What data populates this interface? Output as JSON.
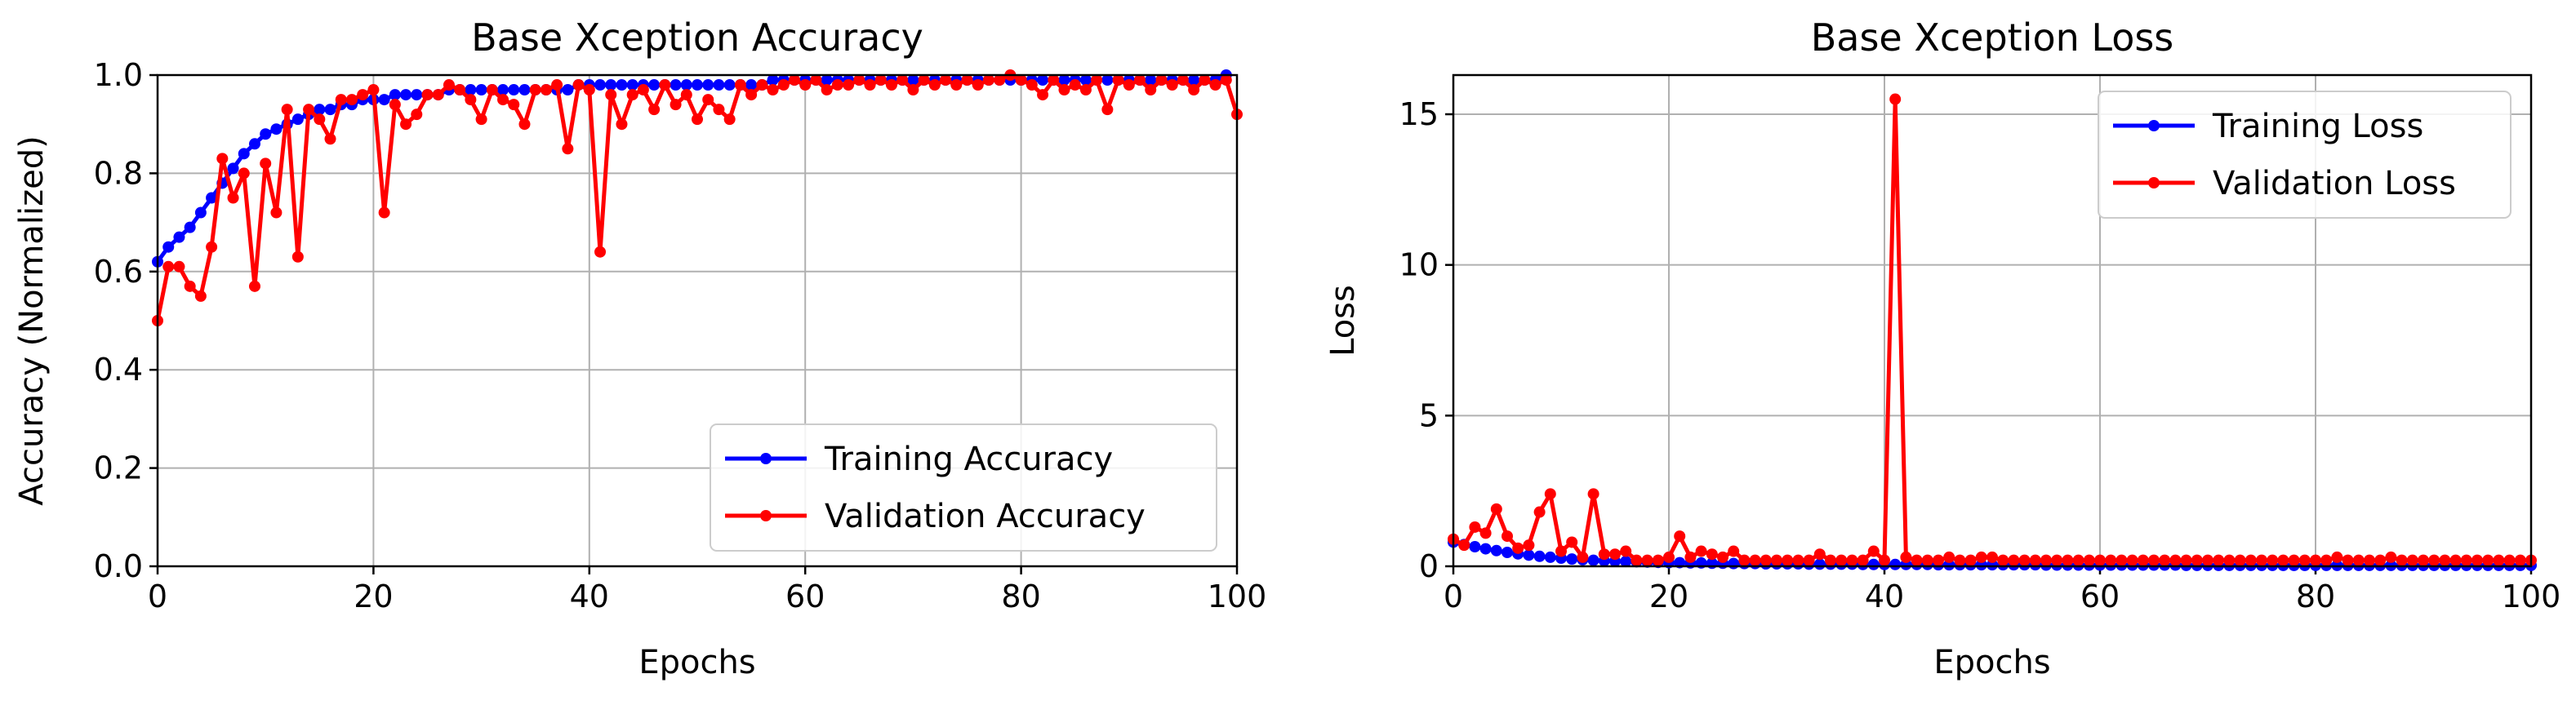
{
  "chart_data": [
    {
      "type": "line",
      "title": "Base Xception Accuracy",
      "xlabel": "Epochs",
      "ylabel": "Accuracy (Normalized)",
      "xlim": [
        0,
        100
      ],
      "ylim": [
        0,
        1.0
      ],
      "xticks": [
        "0",
        "20",
        "40",
        "60",
        "80",
        "100"
      ],
      "yticks": [
        "0.0",
        "0.2",
        "0.4",
        "0.6",
        "0.8",
        "1.0"
      ],
      "grid": true,
      "legend_position": "lower-right",
      "series": [
        {
          "name": "Training Accuracy",
          "color": "#0000ff",
          "values": [
            0.62,
            0.65,
            0.67,
            0.69,
            0.72,
            0.75,
            0.78,
            0.81,
            0.84,
            0.86,
            0.88,
            0.89,
            0.9,
            0.91,
            0.92,
            0.93,
            0.93,
            0.94,
            0.94,
            0.95,
            0.95,
            0.95,
            0.96,
            0.96,
            0.96,
            0.96,
            0.96,
            0.97,
            0.97,
            0.97,
            0.97,
            0.97,
            0.97,
            0.97,
            0.97,
            0.97,
            0.97,
            0.97,
            0.97,
            0.98,
            0.98,
            0.98,
            0.98,
            0.98,
            0.98,
            0.98,
            0.98,
            0.98,
            0.98,
            0.98,
            0.98,
            0.98,
            0.98,
            0.98,
            0.98,
            0.98,
            0.98,
            0.99,
            0.99,
            0.99,
            0.99,
            0.99,
            0.99,
            0.99,
            0.99,
            0.99,
            0.99,
            0.99,
            0.99,
            0.99,
            0.99,
            0.99,
            0.99,
            0.99,
            0.99,
            0.99,
            0.99,
            0.99,
            0.99,
            0.99,
            0.99,
            0.99,
            0.99,
            0.99,
            0.99,
            0.99,
            0.99,
            0.99,
            0.99,
            0.99,
            0.99,
            0.99,
            0.99,
            0.99,
            0.99,
            0.99,
            0.99,
            0.99,
            0.99,
            1.0
          ]
        },
        {
          "name": "Validation Accuracy",
          "color": "#ff0000",
          "values": [
            0.5,
            0.61,
            0.61,
            0.57,
            0.55,
            0.65,
            0.83,
            0.75,
            0.8,
            0.57,
            0.82,
            0.72,
            0.93,
            0.63,
            0.93,
            0.91,
            0.87,
            0.95,
            0.95,
            0.96,
            0.97,
            0.72,
            0.94,
            0.9,
            0.92,
            0.96,
            0.96,
            0.98,
            0.97,
            0.95,
            0.91,
            0.97,
            0.95,
            0.94,
            0.9,
            0.97,
            0.97,
            0.98,
            0.85,
            0.98,
            0.97,
            0.64,
            0.96,
            0.9,
            0.96,
            0.97,
            0.93,
            0.98,
            0.94,
            0.96,
            0.91,
            0.95,
            0.93,
            0.91,
            0.98,
            0.96,
            0.98,
            0.97,
            0.98,
            0.99,
            0.98,
            0.99,
            0.97,
            0.98,
            0.98,
            0.99,
            0.98,
            0.99,
            0.98,
            0.99,
            0.97,
            0.99,
            0.98,
            0.99,
            0.98,
            0.99,
            0.98,
            0.99,
            0.99,
            1.0,
            0.99,
            0.98,
            0.96,
            0.99,
            0.97,
            0.98,
            0.97,
            0.99,
            0.93,
            0.99,
            0.98,
            0.99,
            0.97,
            0.99,
            0.98,
            0.99,
            0.97,
            0.99,
            0.98,
            0.99,
            0.92
          ]
        }
      ]
    },
    {
      "type": "line",
      "title": "Base Xception Loss",
      "xlabel": "Epochs",
      "ylabel": "Loss",
      "xlim": [
        0,
        100
      ],
      "ylim": [
        0,
        16.3
      ],
      "xticks": [
        "0",
        "20",
        "40",
        "60",
        "80",
        "100"
      ],
      "yticks": [
        "0",
        "5",
        "10",
        "15"
      ],
      "grid": true,
      "legend_position": "top-right",
      "series": [
        {
          "name": "Training Loss",
          "color": "#0000ff",
          "values": [
            0.8,
            0.72,
            0.65,
            0.58,
            0.52,
            0.46,
            0.41,
            0.37,
            0.33,
            0.3,
            0.27,
            0.24,
            0.22,
            0.2,
            0.18,
            0.17,
            0.16,
            0.15,
            0.14,
            0.13,
            0.12,
            0.12,
            0.11,
            0.11,
            0.1,
            0.1,
            0.09,
            0.09,
            0.09,
            0.08,
            0.08,
            0.08,
            0.08,
            0.07,
            0.07,
            0.07,
            0.07,
            0.07,
            0.06,
            0.06,
            0.06,
            0.06,
            0.06,
            0.06,
            0.06,
            0.05,
            0.05,
            0.05,
            0.05,
            0.05,
            0.05,
            0.05,
            0.05,
            0.05,
            0.05,
            0.04,
            0.04,
            0.04,
            0.04,
            0.04,
            0.04,
            0.04,
            0.04,
            0.04,
            0.04,
            0.04,
            0.04,
            0.04,
            0.03,
            0.03,
            0.03,
            0.03,
            0.03,
            0.03,
            0.03,
            0.03,
            0.03,
            0.03,
            0.03,
            0.03,
            0.03,
            0.03,
            0.03,
            0.03,
            0.03,
            0.03,
            0.03,
            0.03,
            0.03,
            0.03,
            0.03,
            0.03,
            0.03,
            0.03,
            0.03,
            0.03,
            0.03,
            0.03,
            0.03,
            0.03,
            0.03
          ]
        },
        {
          "name": "Validation Loss",
          "color": "#ff0000",
          "values": [
            0.9,
            0.7,
            1.3,
            1.1,
            1.9,
            1.0,
            0.6,
            0.7,
            1.8,
            2.4,
            0.5,
            0.8,
            0.3,
            2.4,
            0.4,
            0.4,
            0.5,
            0.2,
            0.2,
            0.2,
            0.3,
            1.0,
            0.3,
            0.5,
            0.4,
            0.3,
            0.5,
            0.2,
            0.2,
            0.2,
            0.2,
            0.2,
            0.2,
            0.2,
            0.4,
            0.2,
            0.2,
            0.2,
            0.2,
            0.5,
            0.2,
            15.5,
            0.3,
            0.2,
            0.2,
            0.2,
            0.3,
            0.2,
            0.2,
            0.3,
            0.3,
            0.2,
            0.2,
            0.2,
            0.2,
            0.2,
            0.2,
            0.2,
            0.2,
            0.2,
            0.2,
            0.2,
            0.2,
            0.2,
            0.2,
            0.2,
            0.2,
            0.2,
            0.2,
            0.2,
            0.2,
            0.2,
            0.2,
            0.2,
            0.2,
            0.2,
            0.2,
            0.2,
            0.2,
            0.2,
            0.2,
            0.2,
            0.3,
            0.2,
            0.2,
            0.2,
            0.2,
            0.3,
            0.2,
            0.2,
            0.2,
            0.2,
            0.2,
            0.2,
            0.2,
            0.2,
            0.2,
            0.2,
            0.2,
            0.2,
            0.2
          ]
        }
      ]
    }
  ]
}
